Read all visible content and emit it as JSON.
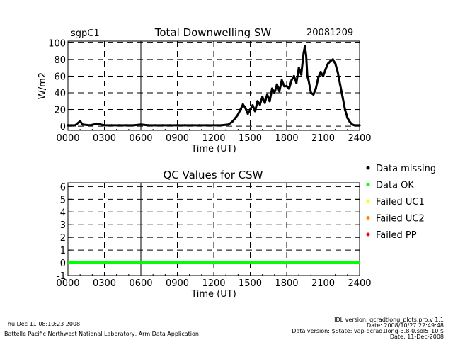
{
  "header": {
    "site": "sgpC1",
    "date": "20081209"
  },
  "legend": {
    "items": [
      {
        "label": "Data missing",
        "color": "#000000"
      },
      {
        "label": "Data OK",
        "color": "#00ff00"
      },
      {
        "label": "Failed UC1",
        "color": "#ffff00"
      },
      {
        "label": "Failed UC2",
        "color": "#ff8800"
      },
      {
        "label": "Failed PP",
        "color": "#ff0000"
      }
    ]
  },
  "footer": {
    "timestamp": "Thu Dec 11 08:10:23 2008",
    "org": "Battelle Pacific Northwest National Laboratory, Arm Data Application",
    "idl_version": "IDL version: qcradtlong_plots.pro,v 1.1",
    "idl_date": "Date: 2008/10/27 22:49:48",
    "data_version": "Data version: $State: vap-qcrad1long-3.8-0.sol5_10 $",
    "data_date": "Date: 11-Dec-2008"
  },
  "chart_data": [
    {
      "type": "scatter",
      "title": "Total Downwelling SW",
      "xlabel": "Time (UT)",
      "ylabel": "W/m2",
      "xlim": [
        0,
        2400
      ],
      "ylim": [
        -5,
        102
      ],
      "xticks": [
        "0000",
        "0300",
        "0600",
        "0900",
        "1200",
        "1500",
        "1800",
        "2100",
        "2400"
      ],
      "yticks": [
        0,
        20,
        40,
        60,
        80,
        100
      ],
      "grid": true,
      "series": [
        {
          "x": [
            0,
            60,
            100,
            120,
            180,
            240,
            300,
            360,
            420,
            480,
            540,
            600,
            660,
            720,
            780,
            840,
            900,
            960,
            1020,
            1080,
            1140,
            1200,
            1260,
            1320,
            1350,
            1380,
            1400,
            1420,
            1440,
            1460,
            1480,
            1500,
            1520,
            1540,
            1560,
            1580,
            1600,
            1620,
            1640,
            1660,
            1680,
            1700,
            1720,
            1740,
            1760,
            1780,
            1800,
            1820,
            1840,
            1860,
            1880,
            1900,
            1920,
            1940,
            1950,
            1960,
            1970,
            1980,
            2000,
            2020,
            2040,
            2060,
            2080,
            2100,
            2120,
            2140,
            2160,
            2180,
            2200,
            2220,
            2240,
            2260,
            2280,
            2300,
            2320,
            2340,
            2360,
            2380,
            2400
          ],
          "y": [
            1,
            1,
            6,
            2,
            1,
            3,
            1,
            1,
            1,
            1,
            1,
            2,
            1,
            1,
            1,
            1,
            1,
            1,
            1,
            1,
            1,
            1,
            1,
            2,
            5,
            10,
            14,
            20,
            26,
            22,
            15,
            20,
            25,
            18,
            30,
            26,
            35,
            28,
            38,
            30,
            45,
            40,
            50,
            42,
            55,
            48,
            48,
            45,
            55,
            60,
            52,
            70,
            62,
            88,
            96,
            85,
            60,
            55,
            40,
            38,
            45,
            58,
            65,
            60,
            68,
            75,
            78,
            80,
            75,
            65,
            50,
            35,
            20,
            10,
            5,
            2,
            1,
            1,
            1
          ]
        }
      ]
    },
    {
      "type": "scatter",
      "title": "QC Values for CSW",
      "xlabel": "Time (UT)",
      "ylabel": "",
      "xlim": [
        0,
        2400
      ],
      "ylim": [
        -1,
        6.3
      ],
      "xticks": [
        "0000",
        "0300",
        "0600",
        "0900",
        "1200",
        "1500",
        "1800",
        "2100",
        "2400"
      ],
      "yticks": [
        -1,
        0,
        1,
        2,
        3,
        4,
        5,
        6
      ],
      "grid": true,
      "series": [
        {
          "name": "Data OK",
          "x": [
            0,
            2400
          ],
          "y": [
            0,
            0
          ]
        }
      ]
    }
  ]
}
